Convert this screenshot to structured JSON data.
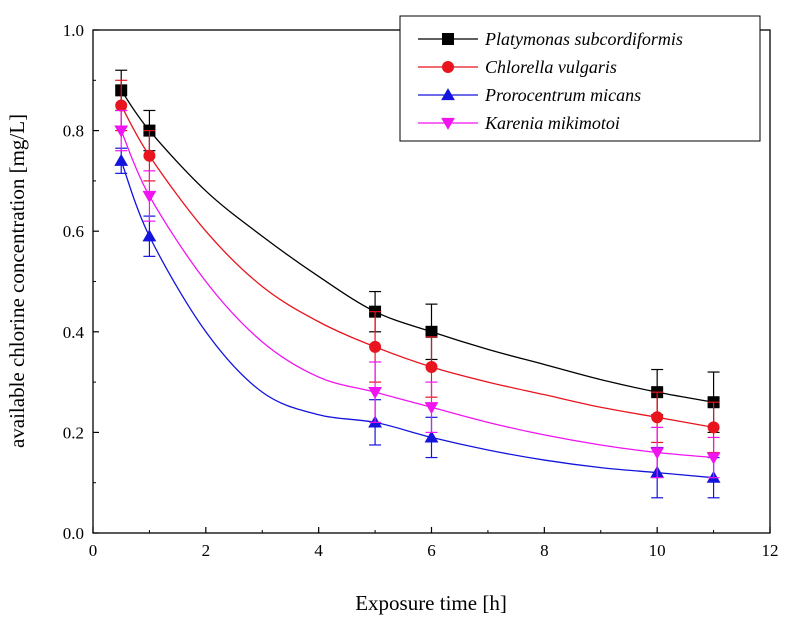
{
  "chart_data": {
    "type": "scatter",
    "xlabel": "Exposure time [h]",
    "ylabel": "available chlorine concentration [mg/L]",
    "xlim": [
      0,
      12
    ],
    "ylim": [
      0.0,
      1.0
    ],
    "x_ticks": [
      0,
      2,
      4,
      6,
      8,
      10,
      12
    ],
    "y_ticks": [
      "0.0",
      "0.2",
      "0.4",
      "0.6",
      "0.8",
      "1.0"
    ],
    "x": [
      0.5,
      1,
      5,
      6,
      10,
      11
    ],
    "legend_position": "top-right",
    "series": [
      {
        "name": "Platymonas subcordiformis",
        "color": "#000000",
        "marker": "square",
        "values": [
          0.88,
          0.8,
          0.44,
          0.4,
          0.28,
          0.26
        ],
        "errors": [
          0.04,
          0.04,
          0.04,
          0.055,
          0.045,
          0.06
        ],
        "fit": [
          [
            0.5,
            0.88
          ],
          [
            1,
            0.8
          ],
          [
            2,
            0.68
          ],
          [
            3,
            0.59
          ],
          [
            4,
            0.51
          ],
          [
            5,
            0.44
          ],
          [
            6,
            0.4
          ],
          [
            7,
            0.365
          ],
          [
            8,
            0.335
          ],
          [
            9,
            0.305
          ],
          [
            10,
            0.28
          ],
          [
            11,
            0.26
          ]
        ]
      },
      {
        "name": "Chlorella vulgaris",
        "color": "#e8141e",
        "marker": "circle",
        "values": [
          0.85,
          0.75,
          0.37,
          0.33,
          0.23,
          0.21
        ],
        "errors": [
          0.05,
          0.05,
          0.07,
          0.06,
          0.05,
          0.05
        ],
        "fit": [
          [
            0.5,
            0.85
          ],
          [
            1,
            0.75
          ],
          [
            2,
            0.6
          ],
          [
            3,
            0.49
          ],
          [
            4,
            0.42
          ],
          [
            5,
            0.37
          ],
          [
            6,
            0.33
          ],
          [
            7,
            0.3
          ],
          [
            8,
            0.275
          ],
          [
            9,
            0.25
          ],
          [
            10,
            0.23
          ],
          [
            11,
            0.21
          ]
        ]
      },
      {
        "name": "Prorocentrum micans",
        "color": "#1414dc",
        "marker": "triangle-up",
        "values": [
          0.74,
          0.59,
          0.22,
          0.19,
          0.12,
          0.11
        ],
        "errors": [
          0.025,
          0.04,
          0.045,
          0.04,
          0.05,
          0.04
        ],
        "fit": [
          [
            0.5,
            0.74
          ],
          [
            1,
            0.59
          ],
          [
            2,
            0.4
          ],
          [
            3,
            0.28
          ],
          [
            4,
            0.235
          ],
          [
            5,
            0.22
          ],
          [
            6,
            0.19
          ],
          [
            7,
            0.165
          ],
          [
            8,
            0.145
          ],
          [
            9,
            0.13
          ],
          [
            10,
            0.12
          ],
          [
            11,
            0.11
          ]
        ]
      },
      {
        "name": "Karenia mikimotoi",
        "color": "#f014f0",
        "marker": "triangle-down",
        "values": [
          0.8,
          0.67,
          0.28,
          0.25,
          0.16,
          0.15
        ],
        "errors": [
          0.04,
          0.05,
          0.06,
          0.05,
          0.05,
          0.04
        ],
        "fit": [
          [
            0.5,
            0.8
          ],
          [
            1,
            0.67
          ],
          [
            2,
            0.5
          ],
          [
            3,
            0.38
          ],
          [
            4,
            0.31
          ],
          [
            5,
            0.28
          ],
          [
            6,
            0.25
          ],
          [
            7,
            0.22
          ],
          [
            8,
            0.195
          ],
          [
            9,
            0.175
          ],
          [
            10,
            0.16
          ],
          [
            11,
            0.15
          ]
        ]
      }
    ]
  }
}
